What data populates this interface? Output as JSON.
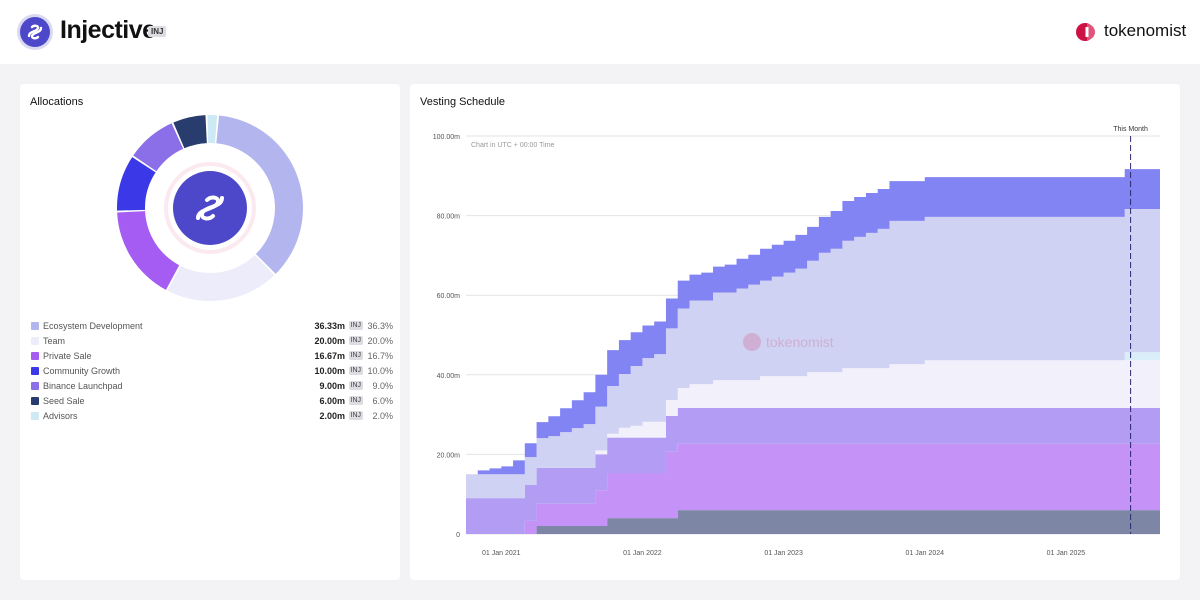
{
  "header": {
    "token_name": "Injective",
    "token_symbol": "INJ",
    "brand_name": "tokenomist",
    "colors": {
      "brand": "#cc1144",
      "token": "#4d47c9"
    }
  },
  "allocations": {
    "title": "Allocations",
    "unit": "INJ",
    "items": [
      {
        "label": "Ecosystem Development",
        "amount": "36.33m",
        "percent": "36.3%",
        "value": 36.3,
        "color": "#b3b5ef"
      },
      {
        "label": "Team",
        "amount": "20.00m",
        "percent": "20.0%",
        "value": 20.0,
        "color": "#ececfa"
      },
      {
        "label": "Private Sale",
        "amount": "16.67m",
        "percent": "16.7%",
        "value": 16.7,
        "color": "#a55cf2"
      },
      {
        "label": "Community Growth",
        "amount": "10.00m",
        "percent": "10.0%",
        "value": 10.0,
        "color": "#3b38e8"
      },
      {
        "label": "Binance Launchpad",
        "amount": "9.00m",
        "percent": "9.0%",
        "value": 9.0,
        "color": "#8a6fe8"
      },
      {
        "label": "Seed Sale",
        "amount": "6.00m",
        "percent": "6.0%",
        "value": 6.0,
        "color": "#283c6d"
      },
      {
        "label": "Advisors",
        "amount": "2.00m",
        "percent": "2.0%",
        "value": 2.0,
        "color": "#cde9f5"
      }
    ]
  },
  "vesting": {
    "title": "Vesting Schedule",
    "chart_note": "Chart in UTC + 00:00 Time",
    "watermark": "tokenomist",
    "this_month_label": "This Month"
  },
  "chart_data": {
    "type": "area",
    "stacked": true,
    "step": true,
    "x_unit": "months since 01 Oct 2020",
    "xlim": [
      0,
      59
    ],
    "ylim": [
      0,
      100
    ],
    "y_tick_values": [
      0,
      20,
      40,
      60,
      80,
      100
    ],
    "y_tick_labels": [
      "0",
      "20.00m",
      "40.00m",
      "60.00m",
      "80.00m",
      "100.00m"
    ],
    "x_tick_values": [
      3,
      15,
      27,
      39,
      51
    ],
    "x_tick_labels": [
      "01 Jan 2021",
      "01 Jan 2022",
      "01 Jan 2023",
      "01 Jan 2024",
      "01 Jan 2025"
    ],
    "this_month_x": 56.5,
    "grid": true,
    "x": [
      0,
      1,
      2,
      3,
      4,
      5,
      6,
      7,
      8,
      9,
      10,
      11,
      12,
      13,
      14,
      15,
      16,
      17,
      18,
      19,
      20,
      21,
      22,
      23,
      24,
      25,
      26,
      27,
      28,
      29,
      30,
      31,
      32,
      33,
      34,
      35,
      36,
      37,
      38,
      39,
      40,
      41,
      42,
      43,
      44,
      45,
      46,
      47,
      48,
      49,
      50,
      51,
      52,
      53,
      54,
      55,
      56,
      57,
      58,
      59
    ],
    "series": [
      {
        "name": "Seed Sale",
        "color": "#7e86a6",
        "values": [
          0,
          0,
          0,
          0,
          0,
          0,
          2,
          2,
          2,
          2,
          2,
          2,
          4,
          4,
          4,
          4,
          4,
          4,
          6,
          6,
          6,
          6,
          6,
          6,
          6,
          6,
          6,
          6,
          6,
          6,
          6,
          6,
          6,
          6,
          6,
          6,
          6,
          6,
          6,
          6,
          6,
          6,
          6,
          6,
          6,
          6,
          6,
          6,
          6,
          6,
          6,
          6,
          6,
          6,
          6,
          6,
          6,
          6,
          6,
          6
        ]
      },
      {
        "name": "Private Sale",
        "color": "#c592f7",
        "values": [
          0,
          0,
          0,
          0,
          0,
          3.3,
          5.6,
          5.6,
          5.6,
          5.6,
          5.6,
          9,
          11.2,
          11.2,
          11.2,
          11.2,
          11.2,
          16.67,
          16.67,
          16.67,
          16.67,
          16.67,
          16.67,
          16.67,
          16.67,
          16.67,
          16.67,
          16.67,
          16.67,
          16.67,
          16.67,
          16.67,
          16.67,
          16.67,
          16.67,
          16.67,
          16.67,
          16.67,
          16.67,
          16.67,
          16.67,
          16.67,
          16.67,
          16.67,
          16.67,
          16.67,
          16.67,
          16.67,
          16.67,
          16.67,
          16.67,
          16.67,
          16.67,
          16.67,
          16.67,
          16.67,
          16.67,
          16.67,
          16.67,
          16.67
        ]
      },
      {
        "name": "Binance Launchpad",
        "color": "#b39cf4",
        "values": [
          9,
          9,
          9,
          9,
          9,
          9,
          9,
          9,
          9,
          9,
          9,
          9,
          9,
          9,
          9,
          9,
          9,
          9,
          9,
          9,
          9,
          9,
          9,
          9,
          9,
          9,
          9,
          9,
          9,
          9,
          9,
          9,
          9,
          9,
          9,
          9,
          9,
          9,
          9,
          9,
          9,
          9,
          9,
          9,
          9,
          9,
          9,
          9,
          9,
          9,
          9,
          9,
          9,
          9,
          9,
          9,
          9,
          9,
          9,
          9
        ]
      },
      {
        "name": "Team",
        "color": "#f1f0fb",
        "values": [
          0,
          0,
          0,
          0,
          0,
          0,
          0,
          0,
          0,
          0,
          0,
          1,
          1,
          2.5,
          3,
          4,
          4,
          4,
          5,
          6,
          6,
          7,
          7,
          7,
          7,
          8,
          8,
          8,
          8,
          9,
          9,
          9,
          10,
          10,
          10,
          10,
          11,
          11,
          11,
          12,
          12,
          12,
          12,
          12,
          12,
          12,
          12,
          12,
          12,
          12,
          12,
          12,
          12,
          12,
          12,
          12,
          12,
          12,
          12,
          12
        ]
      },
      {
        "name": "Advisors",
        "color": "#d9eef8",
        "values": [
          0,
          0,
          0,
          0,
          0,
          0,
          0,
          0,
          0,
          0,
          0,
          0,
          0,
          0,
          0,
          0,
          0,
          0,
          0,
          0,
          0,
          0,
          0,
          0,
          0,
          0,
          0,
          0,
          0,
          0,
          0,
          0,
          0,
          0,
          0,
          0,
          0,
          0,
          0,
          0,
          0,
          0,
          0,
          0,
          0,
          0,
          0,
          0,
          0,
          0,
          0,
          0,
          0,
          0,
          0,
          0,
          2,
          2,
          2,
          2
        ]
      },
      {
        "name": "Ecosystem Development",
        "color": "#d0d2f3",
        "values": [
          6,
          6,
          6,
          6,
          6,
          7,
          7.5,
          8,
          9,
          10,
          11,
          11,
          12,
          13.5,
          15,
          16,
          17,
          18,
          20,
          21,
          21,
          22,
          22,
          23,
          24,
          24,
          25,
          26,
          27,
          28,
          30,
          31,
          32,
          33,
          34,
          35,
          36,
          36,
          36,
          36,
          36,
          36,
          36,
          36,
          36,
          36,
          36,
          36,
          36,
          36,
          36,
          36,
          36,
          36,
          36,
          36,
          36,
          36,
          36,
          36
        ]
      },
      {
        "name": "Community Growth",
        "color": "#8184f2",
        "values": [
          0,
          1,
          1.5,
          2,
          3.5,
          3.5,
          4,
          5,
          6,
          7,
          8,
          8,
          9,
          8.5,
          8.5,
          8.2,
          8.2,
          7.5,
          7,
          6.5,
          7,
          6.5,
          7,
          7.5,
          7.5,
          8,
          8,
          8,
          8.5,
          8.5,
          9,
          9.5,
          10,
          10,
          10,
          10,
          10,
          10,
          10,
          10,
          10,
          10,
          10,
          10,
          10,
          10,
          10,
          10,
          10,
          10,
          10,
          10,
          10,
          10,
          10,
          10,
          10,
          10,
          10,
          10
        ]
      }
    ]
  }
}
